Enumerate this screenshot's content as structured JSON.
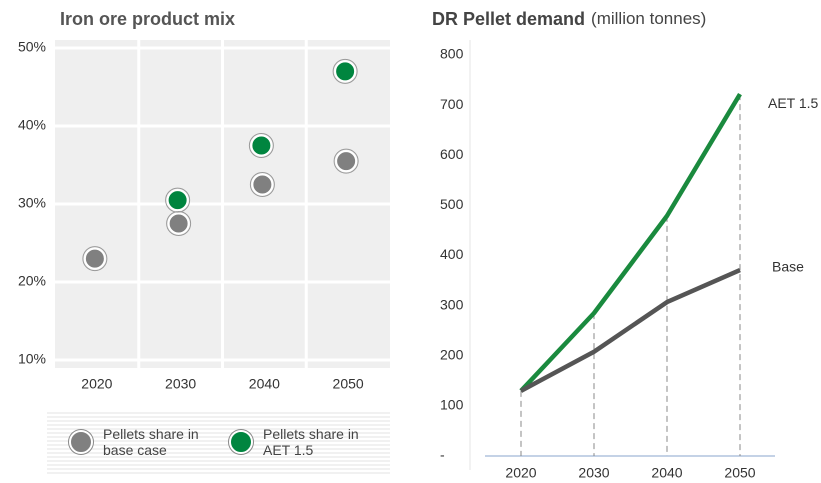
{
  "chart_data": [
    {
      "type": "scatter",
      "title": "Iron ore product mix",
      "categories": [
        "2020",
        "2030",
        "2040",
        "2050"
      ],
      "series": [
        {
          "name": "Pellets share in base case",
          "color": "#808080",
          "values": [
            23,
            27.5,
            32.5,
            35.5
          ]
        },
        {
          "name": "Pellets share in AET 1.5",
          "color": "#00853f",
          "values": [
            null,
            30.5,
            37.5,
            47
          ]
        }
      ],
      "ylim": [
        10,
        50
      ],
      "yticks": [
        {
          "value": 10,
          "label": "10%"
        },
        {
          "value": 20,
          "label": "20%"
        },
        {
          "value": 30,
          "label": "30%"
        },
        {
          "value": 40,
          "label": "40%"
        },
        {
          "value": 50,
          "label": "50%"
        }
      ],
      "grid": true,
      "legend": "bottom"
    },
    {
      "type": "line",
      "title": "DR Pellet demand",
      "subtitle": "(million tonnes)",
      "categories": [
        "2020",
        "2030",
        "2040",
        "2050"
      ],
      "series": [
        {
          "name": "AET 1.5",
          "color": "#1a8a3e",
          "values": [
            130,
            285,
            479,
            722
          ]
        },
        {
          "name": "Base",
          "color": "#555555",
          "values": [
            130,
            208,
            307,
            371
          ]
        }
      ],
      "ylim": [
        0,
        800
      ],
      "yticks": [
        {
          "value": 0,
          "label": "-"
        },
        100,
        200,
        300,
        400,
        500,
        600,
        700,
        800
      ]
    }
  ]
}
